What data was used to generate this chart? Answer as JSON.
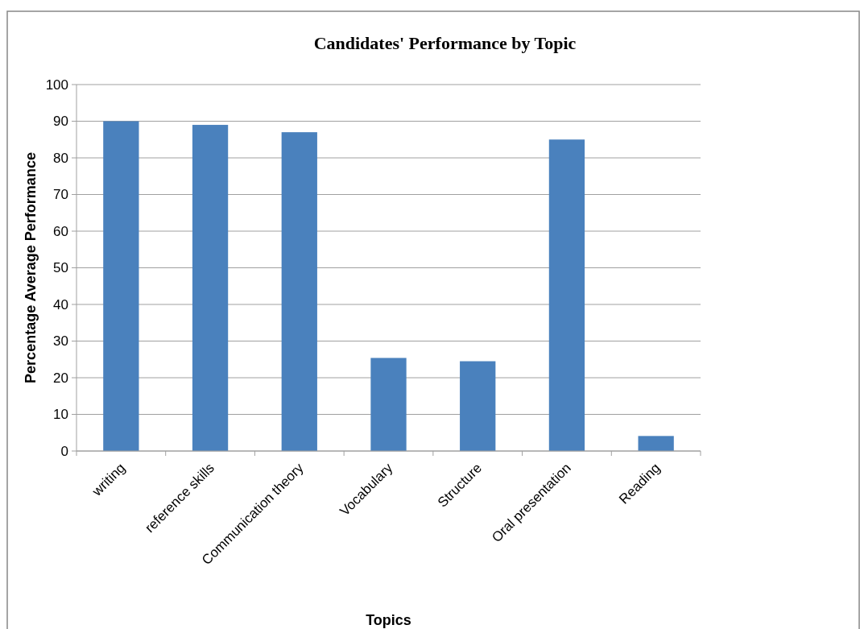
{
  "chart_data": {
    "type": "bar",
    "title": "Candidates' Performance by Topic",
    "xlabel": "Topics",
    "ylabel": "Percentage Average Performance",
    "categories": [
      "writing",
      "reference skills",
      "Communication theory",
      "Vocabulary",
      "Structure",
      "Oral presentation",
      "Reading"
    ],
    "values": [
      90,
      89,
      87,
      25.4,
      24.5,
      85,
      4.1
    ],
    "color": "#4a81bd",
    "ylim": [
      0,
      100
    ],
    "yticks": [
      0,
      10,
      20,
      30,
      40,
      50,
      60,
      70,
      80,
      90,
      100
    ],
    "grid": "y"
  }
}
